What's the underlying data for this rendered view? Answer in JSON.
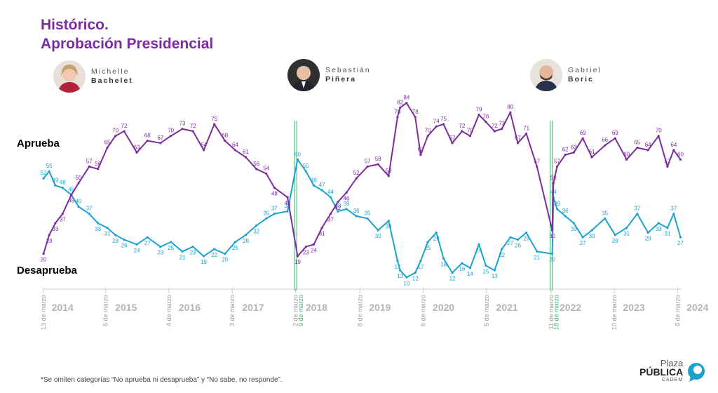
{
  "title": {
    "line1": "Histórico.",
    "line2": "Aprobación Presidencial"
  },
  "presidents": [
    {
      "first": "Michelle",
      "last": "Bachelet"
    },
    {
      "first": "Sebastián",
      "last": "Piñera"
    },
    {
      "first": "Gabriel",
      "last": "Boric"
    }
  ],
  "footnote": "*Se omiten categorías “No aprueba ni desaprueba” y “No sabe, no responde”.",
  "brand": {
    "line1": "Plaza",
    "line2": "PÚBLICA",
    "line3": "CADEM"
  },
  "colors": {
    "approve": "#1ba3d0",
    "disapprove": "#7b2d9e",
    "marker": "#3ab36a",
    "grid": "#cfcfcf",
    "year": "#b5b5b5",
    "date": "#9a9a9a"
  },
  "chart_data": {
    "type": "line",
    "ylim": [
      0,
      100
    ],
    "xlim": [
      "2014-03-13",
      "2024-03-31"
    ],
    "series": [
      {
        "name": "Aprueba",
        "color": "#1ba3d0",
        "x": [
          "2014-03-13",
          "2014-04-15",
          "2014-05-20",
          "2014-07-01",
          "2014-08-20",
          "2014-10-01",
          "2014-12-01",
          "2015-01-20",
          "2015-03-15",
          "2015-05-01",
          "2015-06-20",
          "2015-09-01",
          "2015-11-01",
          "2016-01-15",
          "2016-03-15",
          "2016-05-20",
          "2016-07-20",
          "2016-09-20",
          "2016-11-20",
          "2017-01-20",
          "2017-03-20",
          "2017-05-20",
          "2017-07-20",
          "2017-09-15",
          "2017-11-01",
          "2018-01-15",
          "2018-03-14",
          "2018-05-01",
          "2018-06-15",
          "2018-08-01",
          "2018-09-20",
          "2018-11-01",
          "2018-12-20",
          "2019-02-15",
          "2019-04-20",
          "2019-06-20",
          "2019-08-20",
          "2019-10-10",
          "2019-10-25",
          "2019-12-01",
          "2020-01-20",
          "2020-02-20",
          "2020-04-01",
          "2020-05-20",
          "2020-07-01",
          "2020-08-20",
          "2020-10-15",
          "2020-12-01",
          "2021-01-20",
          "2021-03-01",
          "2021-04-20",
          "2021-06-01",
          "2021-07-20",
          "2021-09-01",
          "2021-10-20",
          "2021-12-20",
          "2022-03-18",
          "2022-03-25",
          "2022-04-15",
          "2022-06-01",
          "2022-07-20",
          "2022-09-10",
          "2022-11-01",
          "2023-01-15",
          "2023-03-15",
          "2023-05-20",
          "2023-07-20",
          "2023-09-20",
          "2023-11-20",
          "2024-01-10",
          "2024-02-15",
          "2024-03-25"
        ],
        "values": [
          52,
          55,
          49,
          48,
          45,
          40,
          37,
          33,
          31,
          28,
          26,
          24,
          27,
          23,
          25,
          21,
          23,
          19,
          22,
          20,
          25,
          28,
          32,
          35,
          37,
          38,
          60,
          55,
          49,
          47,
          44,
          38,
          39,
          36,
          35,
          30,
          34,
          17,
          13,
          10,
          12,
          17,
          25,
          29,
          18,
          12,
          16,
          14,
          24,
          15,
          13,
          22,
          27,
          26,
          29,
          21,
          20,
          44,
          39,
          36,
          33,
          27,
          30,
          35,
          28,
          31,
          37,
          29,
          33,
          31,
          37,
          27
        ]
      },
      {
        "name": "Desaprueba",
        "color": "#7b2d9e",
        "x": [
          "2014-03-13",
          "2014-04-15",
          "2014-05-20",
          "2014-07-01",
          "2014-08-20",
          "2014-10-01",
          "2014-12-01",
          "2015-01-20",
          "2015-03-15",
          "2015-05-01",
          "2015-06-20",
          "2015-09-01",
          "2015-11-01",
          "2016-01-15",
          "2016-03-15",
          "2016-05-20",
          "2016-07-20",
          "2016-09-20",
          "2016-11-20",
          "2017-01-20",
          "2017-03-20",
          "2017-05-20",
          "2017-07-20",
          "2017-09-15",
          "2017-11-01",
          "2018-01-15",
          "2018-03-14",
          "2018-05-01",
          "2018-06-15",
          "2018-08-01",
          "2018-09-20",
          "2018-11-01",
          "2018-12-20",
          "2019-02-15",
          "2019-04-20",
          "2019-06-20",
          "2019-08-20",
          "2019-10-10",
          "2019-10-25",
          "2019-12-01",
          "2020-01-20",
          "2020-02-20",
          "2020-04-01",
          "2020-05-20",
          "2020-07-01",
          "2020-08-20",
          "2020-10-15",
          "2020-12-01",
          "2021-01-20",
          "2021-03-01",
          "2021-04-20",
          "2021-06-01",
          "2021-07-20",
          "2021-09-01",
          "2021-10-20",
          "2021-12-20",
          "2022-03-18",
          "2022-03-25",
          "2022-04-15",
          "2022-06-01",
          "2022-07-20",
          "2022-09-10",
          "2022-11-01",
          "2023-01-15",
          "2023-03-15",
          "2023-05-20",
          "2023-07-20",
          "2023-09-20",
          "2023-11-20",
          "2024-01-10",
          "2024-02-15",
          "2024-03-25"
        ],
        "values": [
          20,
          28,
          33,
          37,
          45,
          50,
          57,
          56,
          65,
          70,
          72,
          63,
          68,
          67,
          70,
          73,
          72,
          64,
          75,
          68,
          64,
          61,
          56,
          54,
          48,
          44,
          19,
          23,
          24,
          31,
          37,
          42,
          46,
          52,
          57,
          58,
          53,
          78,
          82,
          84,
          78,
          62,
          70,
          74,
          75,
          67,
          72,
          70,
          79,
          76,
          72,
          73,
          80,
          67,
          71,
          57,
          30,
          50,
          57,
          62,
          63,
          69,
          61,
          66,
          69,
          60,
          65,
          64,
          70,
          57,
          64,
          60
        ]
      }
    ],
    "xticks": [
      {
        "label": "13 de marzo",
        "date": "2014-03-13"
      },
      {
        "label": "6 de marzo",
        "date": "2015-03-06"
      },
      {
        "label": "4 de marzo",
        "date": "2016-03-04"
      },
      {
        "label": "3 de marzo",
        "date": "2017-03-03"
      },
      {
        "label": "2 de marzo",
        "date": "2018-03-02"
      },
      {
        "label": "8 de marzo",
        "date": "2019-03-08"
      },
      {
        "label": "6 de marzo",
        "date": "2020-03-06"
      },
      {
        "label": "5 de marzo",
        "date": "2021-03-05"
      },
      {
        "label": "11 de marzo",
        "date": "2022-03-11"
      },
      {
        "label": "10 de marzo",
        "date": "2023-03-10"
      },
      {
        "label": "8 de marzo",
        "date": "2024-03-08"
      }
    ],
    "markers": [
      {
        "label": "9 de marzo",
        "date": "2018-03-09"
      },
      {
        "label": "18 de marzo",
        "date": "2022-03-18"
      }
    ],
    "years": [
      "2014",
      "2015",
      "2016",
      "2017",
      "2018",
      "2019",
      "2020",
      "2021",
      "2022",
      "2023",
      "2024"
    ]
  }
}
